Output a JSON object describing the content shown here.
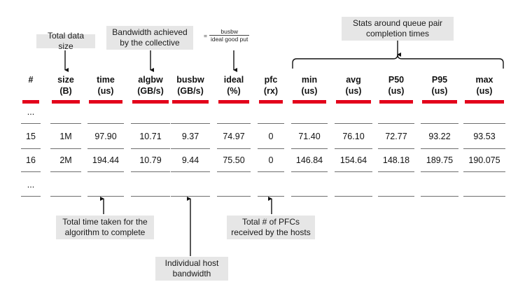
{
  "callouts": {
    "total_data_size": "Total data size",
    "bandwidth_line1": "Bandwidth achieved",
    "bandwidth_line2": "by the collective",
    "ideal_eq": "=",
    "ideal_num": "busbw",
    "ideal_den": "ideal good put",
    "stats_line1": "Stats around queue pair",
    "stats_line2": "completion times",
    "total_time_line1": "Total time taken for the",
    "total_time_line2": "algorithm to complete",
    "host_bw_line1": "Individual host",
    "host_bw_line2": "bandwidth",
    "pfc_line1": "Total # of PFCs",
    "pfc_line2": "received by the hosts"
  },
  "columns": [
    {
      "name": "#",
      "unit": ""
    },
    {
      "name": "size",
      "unit": "(B)"
    },
    {
      "name": "time",
      "unit": "(us)"
    },
    {
      "name": "algbw",
      "unit": "(GB/s)"
    },
    {
      "name": "busbw",
      "unit": "(GB/s)"
    },
    {
      "name": "ideal",
      "unit": "(%)"
    },
    {
      "name": "pfc",
      "unit": "(rx)"
    },
    {
      "name": "min",
      "unit": "(us)"
    },
    {
      "name": "avg",
      "unit": "(us)"
    },
    {
      "name": "P50",
      "unit": "(us)"
    },
    {
      "name": "P95",
      "unit": "(us)"
    },
    {
      "name": "max",
      "unit": "(us)"
    }
  ],
  "rows": [
    [
      "...",
      "",
      "",
      "",
      "",
      "",
      "",
      "",
      "",
      "",
      "",
      ""
    ],
    [
      "15",
      "1M",
      "97.90",
      "10.71",
      "9.37",
      "74.97",
      "0",
      "71.40",
      "76.10",
      "72.77",
      "93.22",
      "93.53"
    ],
    [
      "16",
      "2M",
      "194.44",
      "10.79",
      "9.44",
      "75.50",
      "0",
      "146.84",
      "154.64",
      "148.18",
      "189.75",
      "190.075"
    ],
    [
      "...",
      "",
      "",
      "",
      "",
      "",
      "",
      "",
      "",
      "",
      "",
      ""
    ]
  ],
  "colors": {
    "accent_red": "#e3001b",
    "callout_bg": "#e6e6e6",
    "rule": "#6e6e6e"
  }
}
